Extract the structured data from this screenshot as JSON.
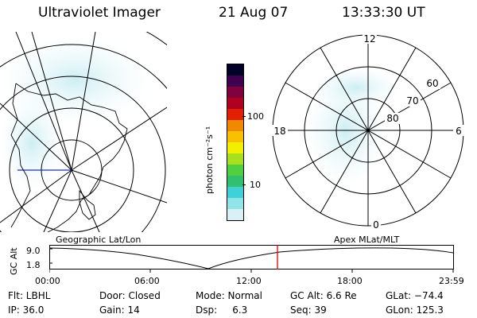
{
  "header": {
    "instrument": "Ultraviolet Imager",
    "date": "21 Aug 07",
    "time": "13:33:30 UT"
  },
  "left_map": {
    "label": "Geographic Lat/Lon"
  },
  "polar_plot": {
    "label": "Apex MLat/MLT",
    "mlt_labels": {
      "top": "12",
      "left": "18",
      "right": "6",
      "bottom": "0"
    },
    "lat_labels": [
      "60",
      "70",
      "80"
    ]
  },
  "colorbar": {
    "unit_label": "photon cm⁻²s⁻¹",
    "ticks": [
      "100",
      "10"
    ],
    "colors": [
      "#d8f0f6",
      "#90e4ea",
      "#40d0d8",
      "#30c070",
      "#50d040",
      "#a8e020",
      "#f0f000",
      "#f8c000",
      "#f08800",
      "#e02000",
      "#b00020",
      "#800040",
      "#400050",
      "#000028"
    ]
  },
  "altitude_chart": {
    "ylabel": "GC Alt",
    "y_ticks": [
      "9.0",
      "1.8"
    ],
    "x_ticks": [
      "00:00",
      "06:00",
      "12:00",
      "18:00",
      "23:59"
    ],
    "current_time_marker_hours": 13.56
  },
  "status": {
    "filter": "Flt: LBHL",
    "door": "Door: Closed",
    "mode": "Mode: Normal",
    "gc_alt": "GC Alt: 6.6 Re",
    "glat": "GLat: −74.4",
    "ip": "IP: 36.0",
    "gain": "Gain: 14",
    "dsp": "Dsp:     6.3",
    "seq": "Seq: 39",
    "glon": "GLon: 125.3"
  }
}
